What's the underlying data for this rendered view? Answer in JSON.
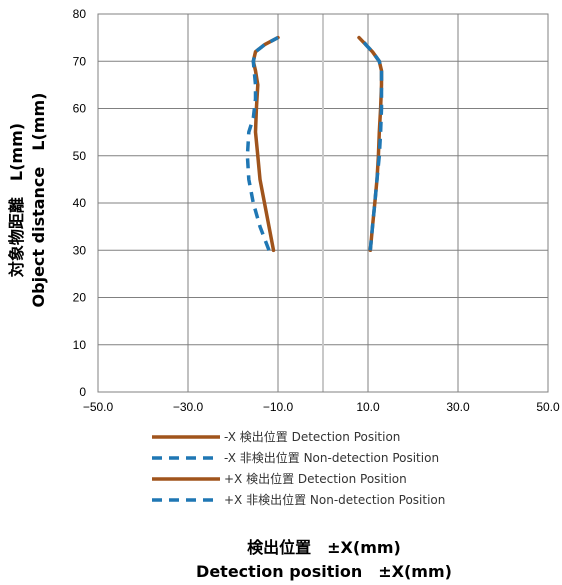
{
  "chart_data": {
    "type": "line",
    "xlabel": [
      "検出位置　±X(mm)",
      "Detection position　±X(mm)"
    ],
    "ylabel": [
      "対象物距離　L(mm)",
      "Object distance　L(mm)"
    ],
    "xlim": [
      -50,
      50
    ],
    "ylim": [
      0,
      80
    ],
    "xticks": [
      "−50.0",
      "−30.0",
      "−10.0",
      "10.0",
      "30.0",
      "50.0"
    ],
    "xtick_values": [
      -50,
      -30,
      -10,
      10,
      30,
      50
    ],
    "yticks": [
      "0",
      "10",
      "20",
      "30",
      "40",
      "50",
      "60",
      "70",
      "80"
    ],
    "ytick_values": [
      0,
      10,
      20,
      30,
      40,
      50,
      60,
      70,
      80
    ],
    "grid": true,
    "center_line_x": 0,
    "legend_position": "bottom-center",
    "series": [
      {
        "name": "-X  検出位置 Detection Position",
        "color": "#a0541c",
        "style": "solid",
        "x": [
          -11,
          -12,
          -13,
          -14,
          -14.5,
          -15,
          -14.8,
          -14.5,
          -15,
          -15.5,
          -15,
          -13,
          -10
        ],
        "y": [
          30,
          35,
          40,
          45,
          50,
          55,
          60,
          65,
          68,
          70,
          72,
          73.5,
          75
        ]
      },
      {
        "name": "-X  非検出位置 Non-detection Position",
        "color": "#1f77b4",
        "style": "dashed",
        "x": [
          -12,
          -14,
          -15.5,
          -16.5,
          -16.8,
          -16.5,
          -15.5,
          -15,
          -15,
          -15.5,
          -15,
          -13,
          -10
        ],
        "y": [
          30,
          35,
          40,
          45,
          50,
          55,
          58,
          62,
          65,
          70,
          72,
          73.5,
          75
        ]
      },
      {
        "name": "+X  検出位置 Detection Position",
        "color": "#a0541c",
        "style": "solid",
        "x": [
          10.5,
          11,
          11.5,
          12,
          12.3,
          12.5,
          12.8,
          13,
          13,
          12.5,
          11,
          9.5,
          8
        ],
        "y": [
          30,
          35,
          40,
          45,
          50,
          55,
          60,
          65,
          68,
          70,
          72,
          73.5,
          75
        ]
      },
      {
        "name": "+X  非検出位置 Non-detection Position",
        "color": "#1f77b4",
        "style": "dashed",
        "x": [
          10.5,
          11,
          11.5,
          12,
          12.5,
          12.8,
          13,
          13,
          13,
          12.5,
          11,
          9.5,
          8.5
        ],
        "y": [
          30,
          35,
          40,
          45,
          50,
          55,
          60,
          65,
          68,
          70,
          72,
          73.5,
          75
        ]
      }
    ]
  }
}
